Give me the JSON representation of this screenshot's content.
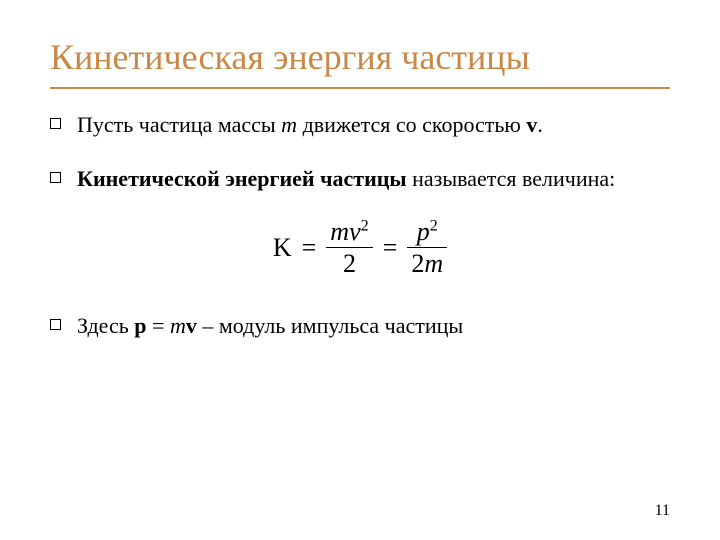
{
  "colors": {
    "title": "#c88848",
    "rule": "#c88848",
    "body": "#000000",
    "pagenum": "#000000",
    "background": "#ffffff",
    "bullet_border": "#000000"
  },
  "typography": {
    "title_fontsize": 36,
    "body_fontsize": 22,
    "formula_fontsize": 26,
    "pagenum_fontsize": 16,
    "font_family": "Times New Roman"
  },
  "title": "Кинетическая энергия частицы",
  "bullets": {
    "b1": {
      "t1": "Пусть частица массы ",
      "m": "m",
      "t2": " движется со скоростью ",
      "v": "v",
      "t3": "."
    },
    "b2": {
      "bold": "Кинетической энергией частицы",
      "rest": " называется величина:"
    },
    "b3": {
      "t1": "Здесь ",
      "p": "p",
      "t2": " = ",
      "m": "m",
      "v": "v",
      "t3": " – модуль импульса частицы"
    }
  },
  "formula": {
    "K": "K",
    "eq": "=",
    "frac1": {
      "num_m": "m",
      "num_v": "v",
      "num_exp": "2",
      "den": "2"
    },
    "frac2": {
      "num_p": "p",
      "num_exp": "2",
      "den_two": "2",
      "den_m": "m"
    }
  },
  "page_number": "11"
}
